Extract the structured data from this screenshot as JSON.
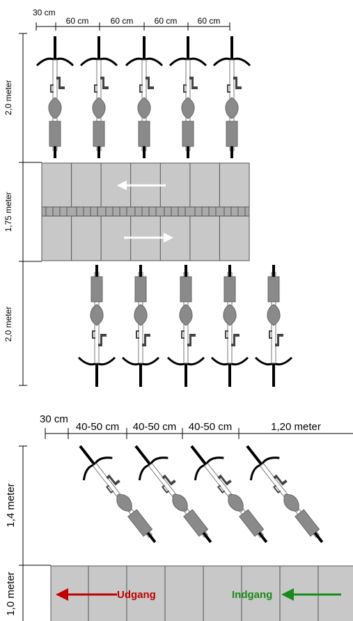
{
  "layout_straight": {
    "width_labels": [
      "30 cm",
      "60 cm",
      "60 cm",
      "60 cm",
      "60 cm"
    ],
    "height_labels": [
      "2,0 meter",
      "1,75 meter",
      "2,0 meter"
    ]
  },
  "layout_angled": {
    "width_labels": [
      "30 cm",
      "40-50 cm",
      "40-50 cm",
      "40-50 cm",
      "1,20 meter"
    ],
    "height_labels": [
      "1,4 meter",
      "1,0 meter"
    ],
    "exit_label": "Udgang",
    "entrance_label": "Indgang"
  }
}
